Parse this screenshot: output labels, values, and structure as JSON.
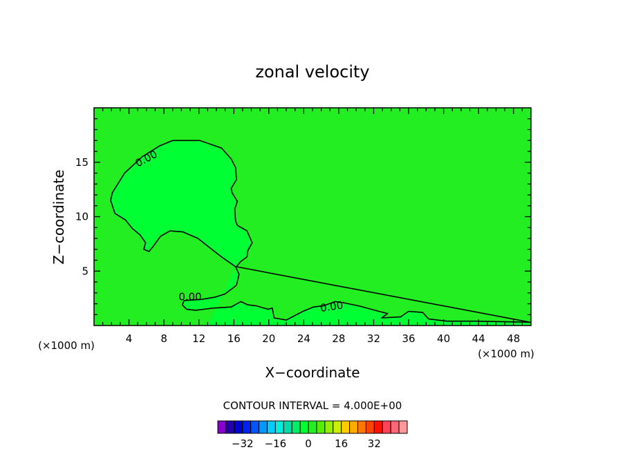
{
  "chart_data": {
    "type": "contour",
    "title": "zonal velocity",
    "xlabel": "X−coordinate",
    "ylabel": "Z−coordinate",
    "x_unit_left": "(×1000 m)",
    "x_unit_right": "(×1000 m)",
    "xlim": [
      0,
      50
    ],
    "ylim": [
      0,
      20
    ],
    "xticks": [
      4,
      8,
      12,
      16,
      20,
      24,
      28,
      32,
      36,
      40,
      44,
      48
    ],
    "yticks": [
      5,
      10,
      15
    ],
    "xtick_labels": [
      "4",
      "8",
      "12",
      "16",
      "20",
      "24",
      "28",
      "32",
      "36",
      "40",
      "44",
      "48"
    ],
    "ytick_labels": [
      "5",
      "10",
      "15"
    ],
    "background_color": "#22ee22",
    "region_color": "#00ff33",
    "contour_interval_text": "CONTOUR INTERVAL = 4.000E+00",
    "contour_labels": [
      {
        "text": "0.00",
        "x": 6,
        "y": 15.3,
        "angle": -28
      },
      {
        "text": "0.00",
        "x": 11,
        "y": 2.6,
        "angle": 0
      },
      {
        "text": "0.00",
        "x": 27.2,
        "y": 1.7,
        "angle": -8
      }
    ],
    "zero_contour": [
      [
        10.5,
        17.0
      ],
      [
        9.0,
        17.0
      ],
      [
        7.5,
        16.5
      ],
      [
        5.5,
        15.5
      ],
      [
        3.5,
        14.0
      ],
      [
        2.1,
        12.2
      ],
      [
        1.9,
        11.5
      ],
      [
        2.4,
        10.3
      ],
      [
        3.6,
        9.7
      ],
      [
        4.4,
        8.9
      ],
      [
        5.3,
        8.3
      ],
      [
        5.9,
        7.6
      ],
      [
        5.7,
        7.0
      ],
      [
        6.3,
        6.8
      ],
      [
        6.8,
        7.3
      ],
      [
        7.6,
        8.2
      ],
      [
        8.7,
        8.7
      ],
      [
        10.2,
        8.6
      ],
      [
        11.9,
        8.0
      ],
      [
        13.0,
        7.3
      ],
      [
        14.6,
        6.3
      ],
      [
        16.2,
        5.4
      ],
      [
        16.6,
        4.7
      ],
      [
        16.3,
        3.7
      ],
      [
        15.0,
        2.9
      ],
      [
        13.8,
        2.6
      ],
      [
        12.3,
        2.4
      ],
      [
        10.3,
        2.3
      ],
      [
        10.1,
        1.9
      ],
      [
        10.6,
        1.5
      ],
      [
        11.6,
        1.4
      ],
      [
        13.6,
        1.6
      ],
      [
        15.7,
        1.7
      ],
      [
        16.8,
        2.2
      ],
      [
        17.6,
        1.9
      ],
      [
        18.6,
        1.8
      ],
      [
        19.9,
        1.5
      ],
      [
        20.4,
        1.6
      ],
      [
        20.6,
        0.7
      ],
      [
        22.0,
        0.5
      ],
      [
        23.9,
        1.3
      ],
      [
        25.1,
        1.7
      ],
      [
        26.2,
        1.8
      ],
      [
        27.6,
        2.2
      ],
      [
        28.5,
        2.1
      ],
      [
        30.3,
        1.8
      ],
      [
        32.6,
        1.3
      ],
      [
        33.6,
        1.1
      ],
      [
        32.9,
        0.7
      ],
      [
        35.1,
        0.8
      ],
      [
        36.0,
        1.3
      ],
      [
        37.6,
        1.2
      ],
      [
        38.3,
        0.6
      ],
      [
        40.4,
        0.4
      ],
      [
        43.6,
        0.4
      ],
      [
        49.9,
        0.3
      ]
    ],
    "zero_contour_right": [
      [
        16.3,
        5.4
      ],
      [
        16.8,
        5.9
      ],
      [
        17.5,
        6.3
      ],
      [
        17.6,
        6.9
      ],
      [
        18.1,
        7.6
      ],
      [
        17.5,
        8.7
      ],
      [
        16.4,
        9.2
      ],
      [
        16.2,
        9.6
      ],
      [
        16.1,
        10.7
      ],
      [
        16.4,
        11.4
      ],
      [
        15.8,
        12.2
      ],
      [
        15.7,
        12.6
      ],
      [
        16.3,
        13.4
      ],
      [
        16.2,
        14.5
      ],
      [
        15.7,
        15.3
      ],
      [
        14.6,
        16.3
      ],
      [
        12.1,
        17.0
      ],
      [
        10.5,
        17.0
      ]
    ],
    "colorbar": {
      "colors": [
        "#8800cc",
        "#2200aa",
        "#0000cc",
        "#0022ee",
        "#0055ff",
        "#0099ff",
        "#00ccff",
        "#00eedd",
        "#00ddaa",
        "#00ee66",
        "#00ff33",
        "#22ee22",
        "#55ee00",
        "#99ee00",
        "#ccee00",
        "#ffcc00",
        "#ffaa00",
        "#ff7700",
        "#ff4400",
        "#ff1100",
        "#ff4455",
        "#ff6677",
        "#ff9999"
      ],
      "tick_labels": [
        "−32",
        "−16",
        "0",
        "16",
        "32"
      ],
      "tick_values": [
        -32,
        -16,
        0,
        16,
        32
      ],
      "vmin": -44,
      "vmax": 48
    }
  }
}
